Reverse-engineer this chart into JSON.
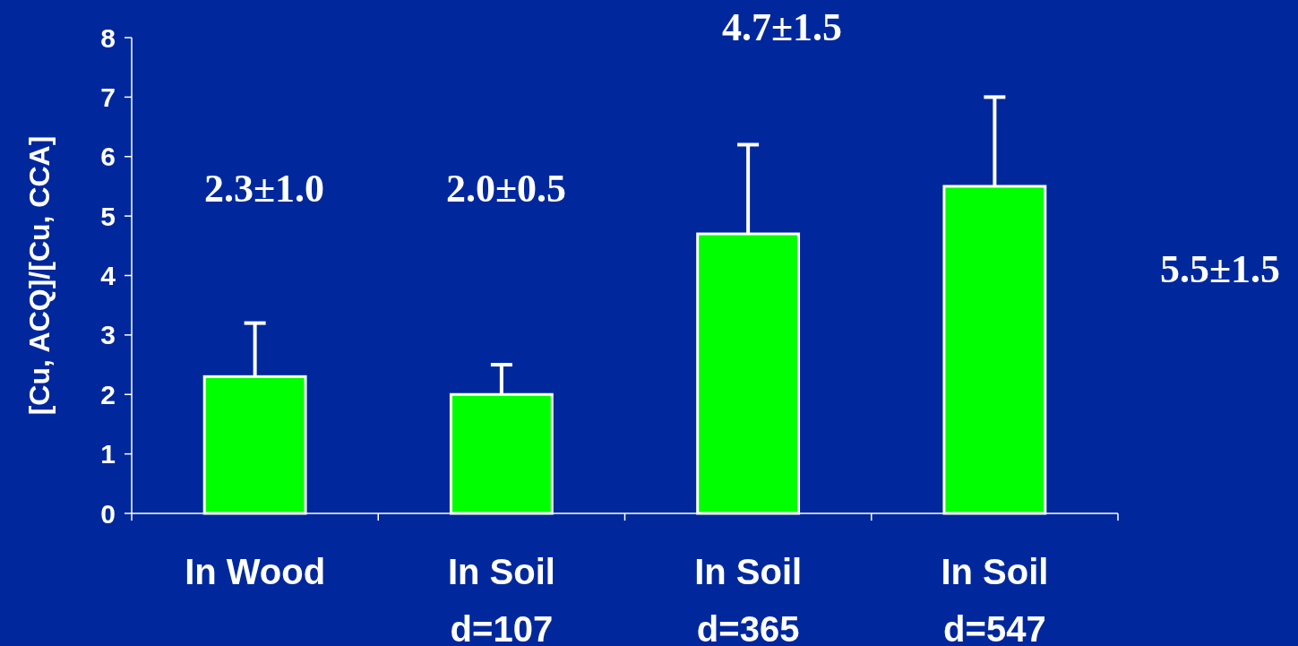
{
  "chart_data": {
    "type": "bar",
    "ylabel": "[Cu, ACQ]/[Cu, CCA]",
    "categories": [
      "In Wood",
      "In Soil\nd=107",
      "In Soil\nd=365",
      "In Soil\nd=547"
    ],
    "values": [
      2.3,
      2.0,
      4.7,
      5.5
    ],
    "errors": [
      [
        2.3,
        3.2
      ],
      [
        2.0,
        2.5
      ],
      [
        4.7,
        6.2
      ],
      [
        5.5,
        7.0
      ]
    ],
    "color": "#00ff00",
    "ylim": [
      0,
      8
    ],
    "yticks": [
      0,
      1,
      2,
      3,
      4,
      5,
      6,
      7,
      8
    ],
    "annotations": [
      "2.3±1.0",
      "2.0±0.5",
      "4.7±1.5",
      "5.5±1.5"
    ]
  }
}
